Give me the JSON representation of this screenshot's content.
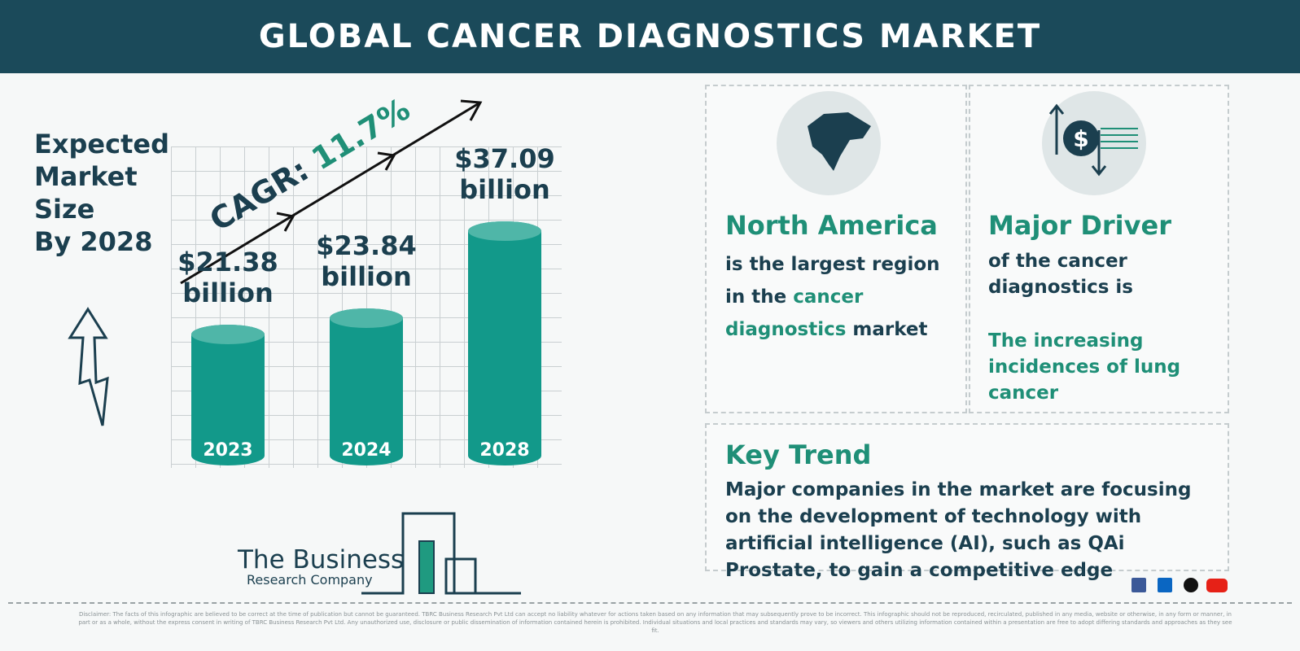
{
  "header": {
    "title": "GLOBAL CANCER DIAGNOSTICS MARKET"
  },
  "intro": {
    "lines": [
      "Expected",
      "Market",
      "Size",
      "By 2028"
    ]
  },
  "chart_data": {
    "type": "bar",
    "categories": [
      "2023",
      "2024",
      "2028"
    ],
    "values": [
      21.38,
      23.84,
      37.09
    ],
    "value_labels": [
      "$21.38 billion",
      "$23.84 billion",
      "$37.09 billion"
    ],
    "color": "#12998a",
    "cagr_label": "CAGR:",
    "cagr_value": "11.7%"
  },
  "region": {
    "title": "North America",
    "text_before": "is the largest region in the",
    "highlight": "cancer diagnostics",
    "text_after": "market"
  },
  "driver": {
    "title": "Major Driver",
    "text": "of the cancer diagnostics is",
    "highlight": "The increasing incidences of lung cancer"
  },
  "trend": {
    "title": "Key Trend",
    "text": "Major companies in the market are focusing on the development of technology with artificial intelligence (AI), such as QAi Prostate, to gain a competitive edge"
  },
  "logo": {
    "line1": "The Business",
    "line2": "Research Company"
  },
  "disclaimer": "Disclaimer: The facts of this infographic are believed to be correct at the time of publication but cannot be guaranteed. TBRC Business Research Pvt Ltd can accept no liability whatever for actions taken based on any information that may subsequently prove to be incorrect. This infographic should not be reproduced, recirculated, published in any media, website or otherwise, in any form or manner, in part or as a whole, without the express consent in writing of TBRC Business Research Pvt Ltd. Any unauthorized use, disclosure or public dissemination of information contained herein is prohibited. Individual situations and local practices and standards may vary, so viewers and others utilizing information contained within a presentation are free to adopt differing standards and approaches as they see fit."
}
